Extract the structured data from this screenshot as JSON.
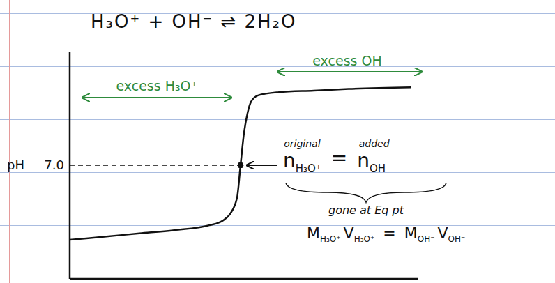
{
  "chart_data": {
    "type": "line",
    "title": "H₃O⁺ + OH⁻ ⇌ 2H₂O",
    "y_label": "pH",
    "x": [
      0,
      5,
      10,
      15,
      20,
      22,
      23,
      24,
      24.5,
      25,
      25.5,
      26,
      27,
      30,
      35,
      40,
      49
    ],
    "values": [
      2.4,
      2.6,
      2.8,
      3.0,
      3.3,
      3.6,
      4.0,
      5.0,
      7.0,
      9.0,
      10.2,
      10.9,
      11.3,
      11.5,
      11.6,
      11.7,
      11.8
    ],
    "color": "#111111",
    "xlim": [
      0,
      50
    ],
    "xticks": [],
    "ylim": [
      0,
      14
    ],
    "yticks": [
      {
        "value": 7,
        "label": "7.0"
      }
    ],
    "tick_labels": "y",
    "grid": false,
    "annotations": {
      "regions": [
        {
          "label": "excess H₃O⁺",
          "color": "#2e8b3c"
        },
        {
          "label": "excess OH⁻",
          "color": "#2e8b3c"
        }
      ],
      "equivalence_point": {
        "x": 24.5,
        "y": 7
      },
      "mole_balance": {
        "left": {
          "symbol": "n",
          "subscript": "H₃O⁺",
          "note": "original"
        },
        "operator": "=",
        "right": {
          "symbol": "n",
          "subscript": "OH⁻",
          "note": "added"
        },
        "brace_note": "gone at Eq pt"
      },
      "molarity_balance": {
        "left": [
          {
            "symbol": "M",
            "subscript": "H₃O⁺"
          },
          {
            "symbol": "V",
            "subscript": "H₃O⁺"
          }
        ],
        "operator": "=",
        "right": [
          {
            "symbol": "M",
            "subscript": "OH⁻"
          },
          {
            "symbol": "V",
            "subscript": "OH⁻"
          }
        ]
      }
    }
  }
}
